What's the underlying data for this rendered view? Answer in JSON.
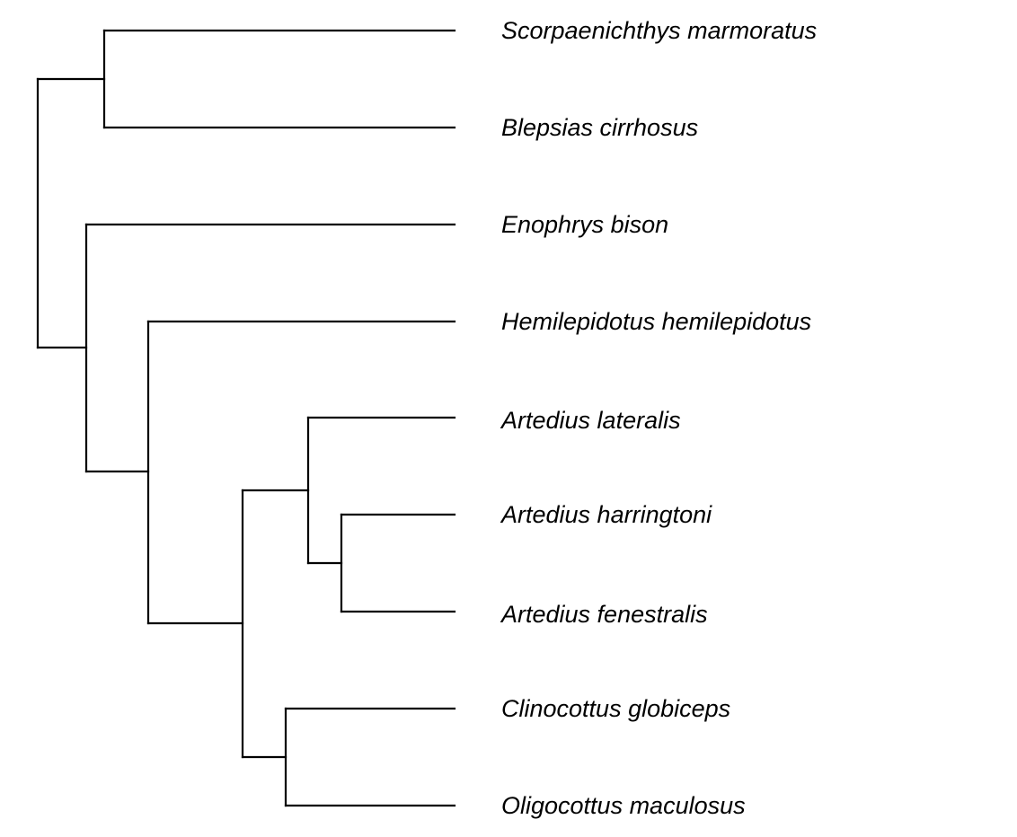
{
  "tree": {
    "taxa": [
      "Scorpaenichthys marmoratus",
      "Blepsias cirrhosus",
      "Enophrys bison",
      "Hemilepidotus hemilepidotus",
      "Artedius lateralis",
      "Artedius harringtoni",
      "Artedius fenestralis",
      "Clinocottus globiceps",
      "Oligocottus maculosus"
    ],
    "topology": [
      "Scorpaenichthys marmoratus",
      "Blepsias cirrhosus",
      "Enophrys bison",
      "Hemilepidotus hemilepidotus",
      "Artedius lateralis",
      "Artedius harringtoni",
      "Artedius fenestralis",
      "Clinocottus globiceps",
      "Oligocottus maculosus"
    ],
    "newick": "((Scorpaenichthys marmoratus,Blepsias cirrhosus),(Enophrys bison,(Hemilepidotus hemilepidotus,((Artedius lateralis,(Artedius harringtoni,Artedius fenestralis)),(Clinocottus globiceps,Oligocottus maculosus)))));",
    "line_color": "#000000",
    "label_style": "italic"
  }
}
